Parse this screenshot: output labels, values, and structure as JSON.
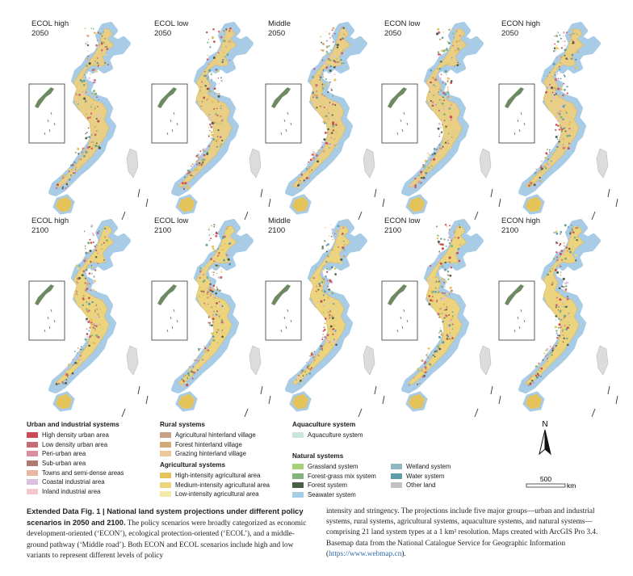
{
  "panels_2050": [
    {
      "scenario": "ECOL high",
      "year": "2050"
    },
    {
      "scenario": "ECOL low",
      "year": "2050"
    },
    {
      "scenario": "Middle",
      "year": "2050"
    },
    {
      "scenario": "ECON low",
      "year": "2050"
    },
    {
      "scenario": "ECON high",
      "year": "2050"
    }
  ],
  "panels_2100": [
    {
      "scenario": "ECOL high",
      "year": "2100"
    },
    {
      "scenario": "ECOL low",
      "year": "2100"
    },
    {
      "scenario": "Middle",
      "year": "2100"
    },
    {
      "scenario": "ECON low",
      "year": "2100"
    },
    {
      "scenario": "ECON high",
      "year": "2100"
    }
  ],
  "legend": {
    "urban": {
      "title": "Urban and industrial systems",
      "items": [
        {
          "label": "High density urban area",
          "color": "#c94b53"
        },
        {
          "label": "Low density urban area",
          "color": "#c86a78"
        },
        {
          "label": "Peri-urban area",
          "color": "#d98fa0"
        },
        {
          "label": "Sub-urban area",
          "color": "#b07a6e"
        },
        {
          "label": "Towns and semi-dense areas",
          "color": "#e7b5a0"
        },
        {
          "label": "Coastal industrial area",
          "color": "#dbc0e0"
        },
        {
          "label": "Inland industrial area",
          "color": "#f5c8cc"
        }
      ]
    },
    "rural": {
      "title": "Rural systems",
      "items": [
        {
          "label": "Agricultural hinterland village",
          "color": "#c8a083"
        },
        {
          "label": "Forest hinterland village",
          "color": "#d4a978"
        },
        {
          "label": "Grazing hinterland village",
          "color": "#ebc89c"
        }
      ]
    },
    "agricultural": {
      "title": "Agricultural systems",
      "items": [
        {
          "label": "High-intensity agricultural area",
          "color": "#e4c35a"
        },
        {
          "label": "Medium-intensity agricultural area",
          "color": "#ecd47e"
        },
        {
          "label": "Low-intensity agricultural area",
          "color": "#f4eaa8"
        }
      ]
    },
    "aquaculture": {
      "title": "Aquaculture system",
      "items": [
        {
          "label": "Aquaculture system",
          "color": "#c9e6de"
        }
      ]
    },
    "natural": {
      "title": "Natural systems",
      "col1": [
        {
          "label": "Grassland system",
          "color": "#a6cf7a"
        },
        {
          "label": "Forest-grass mix system",
          "color": "#83b37f"
        },
        {
          "label": "Forest system",
          "color": "#4d5e48"
        },
        {
          "label": "Seawater system",
          "color": "#a8cbe6"
        }
      ],
      "col2": [
        {
          "label": "Wetland system",
          "color": "#8fb8c2"
        },
        {
          "label": "Water system",
          "color": "#5f9ea8"
        },
        {
          "label": "Other land",
          "color": "#c4c2c0"
        }
      ]
    }
  },
  "map_elements": {
    "north_label": "N",
    "scale_value": "500",
    "scale_unit": "km"
  },
  "caption": {
    "label": "Extended Data Fig. 1 | National land system projections under different policy scenarios in 2050 and 2100.",
    "left_text": "The policy scenarios were broadly categorized as economic development-oriented (‘ECON’), ecological protection-oriented (‘ECOL’), and a middle-ground pathway (‘Middle road’). Both ECON and ECOL scenarios include high and low variants to represent different levels of policy",
    "right_text": "intensity and stringency. The projections include five major groups—urban and industrial systems, rural systems, agricultural systems, aquaculture systems, and natural systems—comprising 21 land system types at a 1 km² resolution. Maps created with ArcGIS Pro 3.4. Basemap data from the National Catalogue Service for Geographic Information (",
    "link": "https://www.webmap.cn",
    "right_end": ")."
  }
}
